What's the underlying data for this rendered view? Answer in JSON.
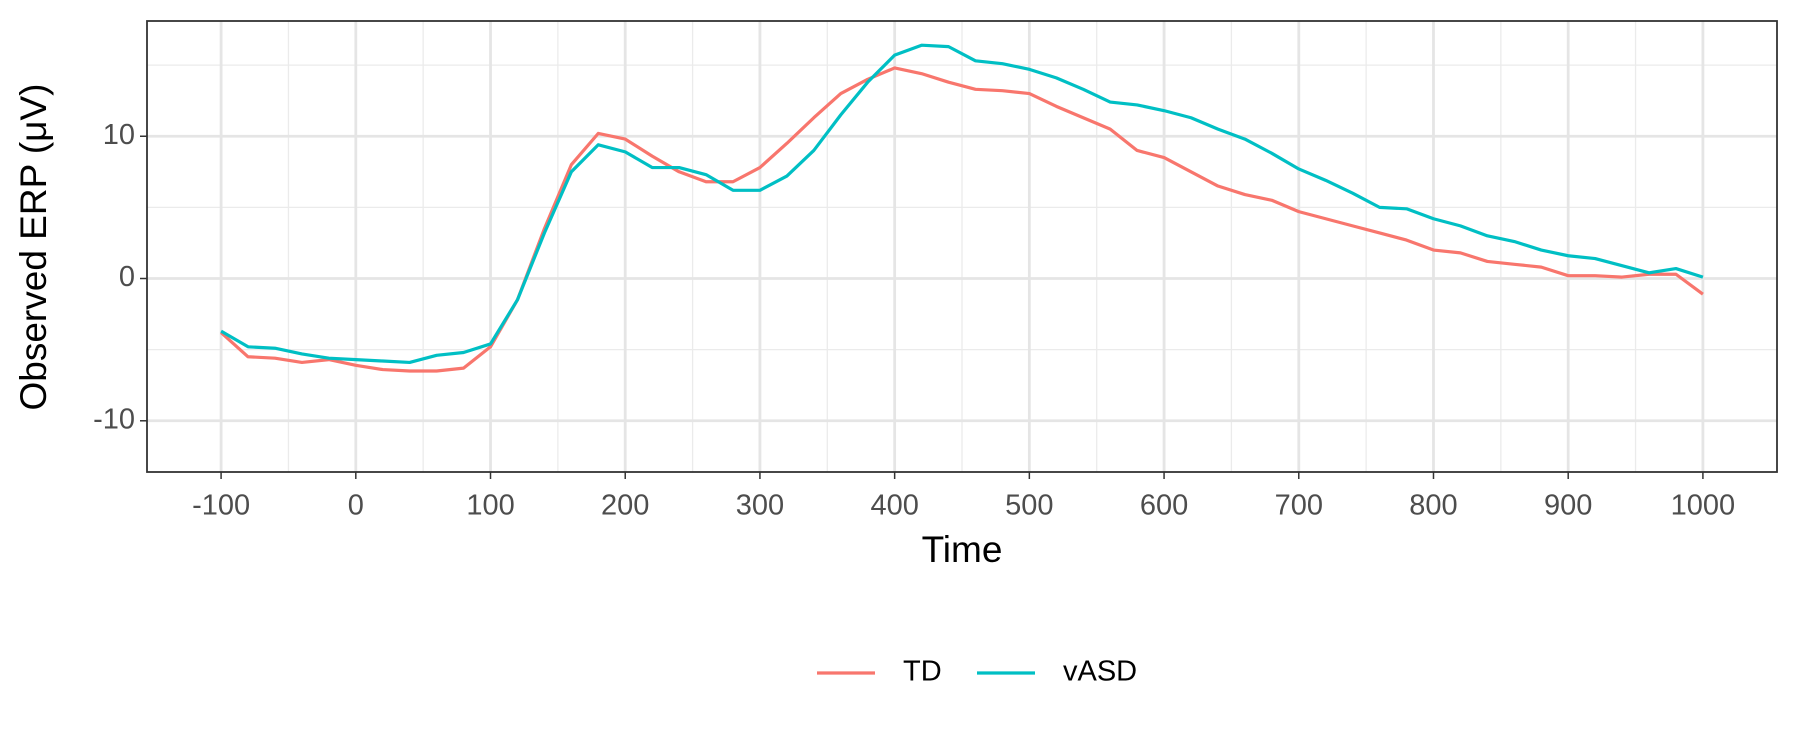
{
  "chart_data": {
    "type": "line",
    "x_label": "Time",
    "y_label": "Observed ERP (μV)",
    "x": [
      -100,
      -80,
      -60,
      -40,
      -20,
      0,
      20,
      40,
      60,
      80,
      100,
      120,
      140,
      160,
      180,
      200,
      220,
      240,
      260,
      280,
      300,
      320,
      340,
      360,
      380,
      400,
      420,
      440,
      460,
      480,
      500,
      520,
      540,
      560,
      580,
      600,
      620,
      640,
      660,
      680,
      700,
      720,
      740,
      760,
      780,
      800,
      820,
      840,
      860,
      880,
      900,
      920,
      940,
      960,
      980,
      1000
    ],
    "series": [
      {
        "name": "TD",
        "color": "#F8766D",
        "values": [
          -3.8,
          -5.5,
          -5.6,
          -5.9,
          -5.7,
          -6.1,
          -6.4,
          -6.5,
          -6.5,
          -6.3,
          -4.8,
          -1.5,
          3.5,
          8.0,
          10.2,
          9.8,
          8.6,
          7.5,
          6.8,
          6.8,
          7.8,
          9.5,
          11.3,
          13.0,
          14.0,
          14.8,
          14.4,
          13.8,
          13.3,
          13.2,
          13.0,
          12.1,
          11.3,
          10.5,
          9.0,
          8.5,
          7.5,
          6.5,
          5.9,
          5.5,
          4.7,
          4.2,
          3.7,
          3.2,
          2.7,
          2.0,
          1.8,
          1.2,
          1.0,
          0.8,
          0.2,
          0.2,
          0.1,
          0.3,
          0.3,
          -1.1
        ]
      },
      {
        "name": "vASD",
        "color": "#00BFC4",
        "values": [
          -3.7,
          -4.8,
          -4.9,
          -5.3,
          -5.6,
          -5.7,
          -5.8,
          -5.9,
          -5.4,
          -5.2,
          -4.6,
          -1.5,
          3.2,
          7.5,
          9.4,
          8.9,
          7.8,
          7.8,
          7.3,
          6.2,
          6.2,
          7.2,
          9.0,
          11.5,
          13.8,
          15.7,
          16.4,
          16.3,
          15.3,
          15.1,
          14.7,
          14.1,
          13.3,
          12.4,
          12.2,
          11.8,
          11.3,
          10.5,
          9.8,
          8.8,
          7.7,
          6.9,
          6.0,
          5.0,
          4.9,
          4.2,
          3.7,
          3.0,
          2.6,
          2.0,
          1.6,
          1.4,
          0.9,
          0.4,
          0.7,
          0.1
        ]
      }
    ],
    "xlim": [
      -155,
      1055
    ],
    "ylim": [
      -13.6,
      18.1
    ],
    "xticks": [
      -100,
      0,
      100,
      200,
      300,
      400,
      500,
      600,
      700,
      800,
      900,
      1000
    ],
    "yticks": [
      -10,
      0,
      10
    ],
    "x_minor_grid": [
      -50,
      50,
      150,
      250,
      350,
      450,
      550,
      650,
      750,
      850,
      950
    ],
    "y_minor_grid": [
      -5,
      5,
      15
    ],
    "grid": true,
    "legend": "bottom"
  }
}
